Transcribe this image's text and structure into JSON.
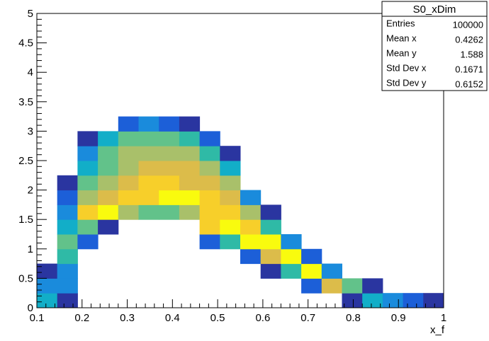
{
  "chart_data": {
    "type": "heatmap",
    "title": "",
    "xlabel": "x_f",
    "ylabel": "",
    "xlim": [
      0.1,
      1.0
    ],
    "ylim": [
      0,
      5
    ],
    "x_ticks": [
      "0.1",
      "0.2",
      "0.3",
      "0.4",
      "0.5",
      "0.6",
      "0.7",
      "0.8",
      "0.9",
      "1"
    ],
    "y_ticks": [
      "0",
      "0.5",
      "1",
      "1.5",
      "2",
      "2.5",
      "3",
      "3.5",
      "4",
      "4.5",
      "5"
    ],
    "bin_width_x": 0.045,
    "bin_width_y": 0.25,
    "color_scale": [
      "#2a35a0",
      "#1c5fd8",
      "#1a8bdc",
      "#12aec8",
      "#2fbaa6",
      "#62c28a",
      "#a9c06a",
      "#dcbc4a",
      "#f7cf2a",
      "#f9fb0e"
    ],
    "cells": [
      {
        "x": 0.1,
        "y": 0.0,
        "v": 3
      },
      {
        "x": 0.1,
        "y": 0.25,
        "v": 2
      },
      {
        "x": 0.1,
        "y": 0.5,
        "v": 0
      },
      {
        "x": 0.145,
        "y": 0.0,
        "v": 0
      },
      {
        "x": 0.145,
        "y": 0.25,
        "v": 2
      },
      {
        "x": 0.145,
        "y": 0.5,
        "v": 2
      },
      {
        "x": 0.145,
        "y": 0.75,
        "v": 4
      },
      {
        "x": 0.145,
        "y": 1.0,
        "v": 5
      },
      {
        "x": 0.145,
        "y": 1.25,
        "v": 3
      },
      {
        "x": 0.145,
        "y": 1.5,
        "v": 2
      },
      {
        "x": 0.145,
        "y": 1.75,
        "v": 1
      },
      {
        "x": 0.145,
        "y": 2.0,
        "v": 0
      },
      {
        "x": 0.19,
        "y": 1.0,
        "v": 1
      },
      {
        "x": 0.19,
        "y": 1.25,
        "v": 5
      },
      {
        "x": 0.19,
        "y": 1.5,
        "v": 8
      },
      {
        "x": 0.19,
        "y": 1.75,
        "v": 6
      },
      {
        "x": 0.19,
        "y": 2.0,
        "v": 5
      },
      {
        "x": 0.19,
        "y": 2.25,
        "v": 3
      },
      {
        "x": 0.19,
        "y": 2.5,
        "v": 2
      },
      {
        "x": 0.19,
        "y": 2.75,
        "v": 0
      },
      {
        "x": 0.235,
        "y": 1.25,
        "v": 0
      },
      {
        "x": 0.235,
        "y": 1.5,
        "v": 9
      },
      {
        "x": 0.235,
        "y": 1.75,
        "v": 7
      },
      {
        "x": 0.235,
        "y": 2.0,
        "v": 6
      },
      {
        "x": 0.235,
        "y": 2.25,
        "v": 5
      },
      {
        "x": 0.235,
        "y": 2.5,
        "v": 5
      },
      {
        "x": 0.235,
        "y": 2.75,
        "v": 3
      },
      {
        "x": 0.28,
        "y": 1.5,
        "v": 6
      },
      {
        "x": 0.28,
        "y": 1.75,
        "v": 8
      },
      {
        "x": 0.28,
        "y": 2.0,
        "v": 7
      },
      {
        "x": 0.28,
        "y": 2.25,
        "v": 6
      },
      {
        "x": 0.28,
        "y": 2.5,
        "v": 6
      },
      {
        "x": 0.28,
        "y": 2.75,
        "v": 5
      },
      {
        "x": 0.28,
        "y": 3.0,
        "v": 1
      },
      {
        "x": 0.325,
        "y": 1.5,
        "v": 5
      },
      {
        "x": 0.325,
        "y": 1.75,
        "v": 8
      },
      {
        "x": 0.325,
        "y": 2.0,
        "v": 8
      },
      {
        "x": 0.325,
        "y": 2.25,
        "v": 7
      },
      {
        "x": 0.325,
        "y": 2.5,
        "v": 6
      },
      {
        "x": 0.325,
        "y": 2.75,
        "v": 5
      },
      {
        "x": 0.325,
        "y": 3.0,
        "v": 2
      },
      {
        "x": 0.37,
        "y": 1.5,
        "v": 5
      },
      {
        "x": 0.37,
        "y": 1.75,
        "v": 9
      },
      {
        "x": 0.37,
        "y": 2.0,
        "v": 8
      },
      {
        "x": 0.37,
        "y": 2.25,
        "v": 7
      },
      {
        "x": 0.37,
        "y": 2.5,
        "v": 6
      },
      {
        "x": 0.37,
        "y": 2.75,
        "v": 5
      },
      {
        "x": 0.37,
        "y": 3.0,
        "v": 1
      },
      {
        "x": 0.415,
        "y": 1.5,
        "v": 6
      },
      {
        "x": 0.415,
        "y": 1.75,
        "v": 9
      },
      {
        "x": 0.415,
        "y": 2.0,
        "v": 7
      },
      {
        "x": 0.415,
        "y": 2.25,
        "v": 7
      },
      {
        "x": 0.415,
        "y": 2.5,
        "v": 6
      },
      {
        "x": 0.415,
        "y": 2.75,
        "v": 4
      },
      {
        "x": 0.415,
        "y": 3.0,
        "v": 0
      },
      {
        "x": 0.46,
        "y": 1.0,
        "v": 1
      },
      {
        "x": 0.46,
        "y": 1.25,
        "v": 8
      },
      {
        "x": 0.46,
        "y": 1.5,
        "v": 8
      },
      {
        "x": 0.46,
        "y": 1.75,
        "v": 8
      },
      {
        "x": 0.46,
        "y": 2.0,
        "v": 7
      },
      {
        "x": 0.46,
        "y": 2.25,
        "v": 6
      },
      {
        "x": 0.46,
        "y": 2.5,
        "v": 4
      },
      {
        "x": 0.46,
        "y": 2.75,
        "v": 1
      },
      {
        "x": 0.505,
        "y": 1.0,
        "v": 4
      },
      {
        "x": 0.505,
        "y": 1.25,
        "v": 9
      },
      {
        "x": 0.505,
        "y": 1.5,
        "v": 8
      },
      {
        "x": 0.505,
        "y": 1.75,
        "v": 7
      },
      {
        "x": 0.505,
        "y": 2.0,
        "v": 6
      },
      {
        "x": 0.505,
        "y": 2.25,
        "v": 3
      },
      {
        "x": 0.505,
        "y": 2.5,
        "v": 0
      },
      {
        "x": 0.55,
        "y": 0.75,
        "v": 1
      },
      {
        "x": 0.55,
        "y": 1.0,
        "v": 9
      },
      {
        "x": 0.55,
        "y": 1.25,
        "v": 8
      },
      {
        "x": 0.55,
        "y": 1.5,
        "v": 6
      },
      {
        "x": 0.55,
        "y": 1.75,
        "v": 2
      },
      {
        "x": 0.595,
        "y": 0.5,
        "v": 0
      },
      {
        "x": 0.595,
        "y": 0.75,
        "v": 7
      },
      {
        "x": 0.595,
        "y": 1.0,
        "v": 9
      },
      {
        "x": 0.595,
        "y": 1.25,
        "v": 4
      },
      {
        "x": 0.595,
        "y": 1.5,
        "v": 0
      },
      {
        "x": 0.64,
        "y": 0.5,
        "v": 4
      },
      {
        "x": 0.64,
        "y": 0.75,
        "v": 9
      },
      {
        "x": 0.64,
        "y": 1.0,
        "v": 2
      },
      {
        "x": 0.685,
        "y": 0.25,
        "v": 1
      },
      {
        "x": 0.685,
        "y": 0.5,
        "v": 9
      },
      {
        "x": 0.685,
        "y": 0.75,
        "v": 1
      },
      {
        "x": 0.73,
        "y": 0.25,
        "v": 7
      },
      {
        "x": 0.73,
        "y": 0.5,
        "v": 2
      },
      {
        "x": 0.775,
        "y": 0.0,
        "v": 0
      },
      {
        "x": 0.775,
        "y": 0.25,
        "v": 5
      },
      {
        "x": 0.82,
        "y": 0.0,
        "v": 3
      },
      {
        "x": 0.82,
        "y": 0.25,
        "v": 0
      },
      {
        "x": 0.865,
        "y": 0.0,
        "v": 2
      },
      {
        "x": 0.91,
        "y": 0.0,
        "v": 1
      },
      {
        "x": 0.955,
        "y": 0.0,
        "v": 0
      }
    ]
  },
  "stats_box": {
    "title": "S0_xDim",
    "rows": [
      {
        "label": "Entries",
        "value": "100000"
      },
      {
        "label": "Mean x",
        "value": "0.4262"
      },
      {
        "label": "Mean y",
        "value": "1.588"
      },
      {
        "label": "Std Dev x",
        "value": "0.1671"
      },
      {
        "label": "Std Dev y",
        "value": "0.6152"
      }
    ]
  }
}
